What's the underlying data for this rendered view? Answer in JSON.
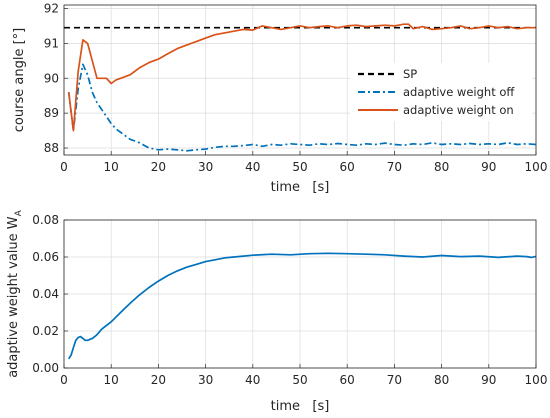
{
  "chart_data": [
    {
      "type": "line",
      "title": "",
      "xlabel": "time   [s]",
      "ylabel": "course angle [°]",
      "xlim": [
        0,
        100
      ],
      "ylim": [
        87.8,
        92.1
      ],
      "xticks": [
        0,
        10,
        20,
        30,
        40,
        50,
        60,
        70,
        80,
        90,
        100
      ],
      "yticks": [
        88,
        89,
        90,
        91,
        92
      ],
      "grid": true,
      "legend_position": "center-right",
      "series": [
        {
          "name": "SP",
          "color": "#000000",
          "style": "dashed",
          "x": [
            0,
            100
          ],
          "y": [
            91.45,
            91.45
          ]
        },
        {
          "name": "adaptive weight off",
          "color": "#0072BD",
          "style": "dashdot",
          "x": [
            1,
            2,
            3,
            4,
            5,
            6,
            7,
            8,
            9,
            10,
            11,
            12,
            13,
            14,
            15,
            16,
            18,
            20,
            22,
            24,
            26,
            28,
            30,
            32,
            34,
            36,
            38,
            40,
            42,
            44,
            46,
            48,
            50,
            52,
            54,
            56,
            58,
            60,
            62,
            64,
            66,
            68,
            70,
            72,
            74,
            76,
            78,
            80,
            82,
            84,
            86,
            88,
            90,
            92,
            94,
            96,
            98,
            100
          ],
          "y": [
            89.6,
            88.5,
            89.7,
            90.4,
            90.1,
            89.6,
            89.3,
            89.1,
            88.9,
            88.7,
            88.55,
            88.45,
            88.35,
            88.25,
            88.2,
            88.15,
            88.0,
            87.95,
            87.97,
            87.95,
            87.92,
            87.95,
            87.97,
            88.02,
            88.05,
            88.05,
            88.07,
            88.1,
            88.05,
            88.1,
            88.08,
            88.12,
            88.1,
            88.08,
            88.12,
            88.1,
            88.13,
            88.1,
            88.08,
            88.12,
            88.1,
            88.14,
            88.1,
            88.08,
            88.12,
            88.1,
            88.15,
            88.1,
            88.12,
            88.1,
            88.13,
            88.1,
            88.12,
            88.1,
            88.15,
            88.1,
            88.12,
            88.1
          ]
        },
        {
          "name": "adaptive weight on",
          "color": "#D95319",
          "style": "solid",
          "x": [
            1,
            2,
            3,
            4,
            5,
            6,
            7,
            8,
            9,
            10,
            11,
            12,
            14,
            16,
            18,
            20,
            22,
            24,
            26,
            28,
            30,
            32,
            34,
            36,
            38,
            40,
            42,
            44,
            46,
            48,
            50,
            52,
            54,
            56,
            58,
            60,
            62,
            64,
            66,
            68,
            70,
            72,
            73,
            74,
            76,
            78,
            80,
            82,
            84,
            86,
            88,
            90,
            92,
            94,
            96,
            98,
            100
          ],
          "y": [
            89.6,
            88.5,
            90.2,
            91.1,
            91.0,
            90.5,
            90.0,
            90.0,
            90.0,
            89.85,
            89.95,
            90.0,
            90.1,
            90.3,
            90.45,
            90.55,
            90.7,
            90.85,
            90.95,
            91.05,
            91.15,
            91.25,
            91.3,
            91.35,
            91.4,
            91.38,
            91.5,
            91.45,
            91.4,
            91.45,
            91.5,
            91.45,
            91.48,
            91.5,
            91.45,
            91.5,
            91.52,
            91.48,
            91.5,
            91.52,
            91.5,
            91.55,
            91.55,
            91.42,
            91.48,
            91.4,
            91.42,
            91.45,
            91.5,
            91.42,
            91.45,
            91.5,
            91.45,
            91.48,
            91.42,
            91.45,
            91.45
          ]
        }
      ]
    },
    {
      "type": "line",
      "title": "",
      "xlabel": "time   [s]",
      "ylabel": "adaptive weight value W",
      "ylabel_subscript": "A",
      "xlim": [
        0,
        100
      ],
      "ylim": [
        0,
        0.08
      ],
      "xticks": [
        0,
        10,
        20,
        30,
        40,
        50,
        60,
        70,
        80,
        90,
        100
      ],
      "yticks": [
        0,
        0.02,
        0.04,
        0.06,
        0.08
      ],
      "grid": true,
      "series": [
        {
          "color": "#0072BD",
          "style": "solid",
          "x": [
            1,
            1.5,
            2,
            2.5,
            3,
            3.5,
            4,
            4.5,
            5,
            5.5,
            6,
            6.5,
            7,
            8,
            9,
            10,
            12,
            14,
            16,
            18,
            20,
            22,
            24,
            26,
            28,
            30,
            32,
            34,
            36,
            38,
            40,
            44,
            48,
            52,
            56,
            60,
            64,
            68,
            72,
            76,
            80,
            84,
            88,
            92,
            96,
            98,
            99,
            100
          ],
          "y": [
            0.005,
            0.007,
            0.011,
            0.015,
            0.0165,
            0.017,
            0.016,
            0.015,
            0.015,
            0.0155,
            0.016,
            0.017,
            0.018,
            0.021,
            0.023,
            0.025,
            0.03,
            0.035,
            0.0395,
            0.0435,
            0.047,
            0.05,
            0.0525,
            0.0545,
            0.056,
            0.0575,
            0.0585,
            0.0595,
            0.06,
            0.0605,
            0.061,
            0.0615,
            0.0612,
            0.0618,
            0.062,
            0.0618,
            0.0615,
            0.0612,
            0.0605,
            0.06,
            0.0608,
            0.0602,
            0.0605,
            0.0598,
            0.0605,
            0.0602,
            0.0598,
            0.0603
          ]
        }
      ]
    }
  ]
}
